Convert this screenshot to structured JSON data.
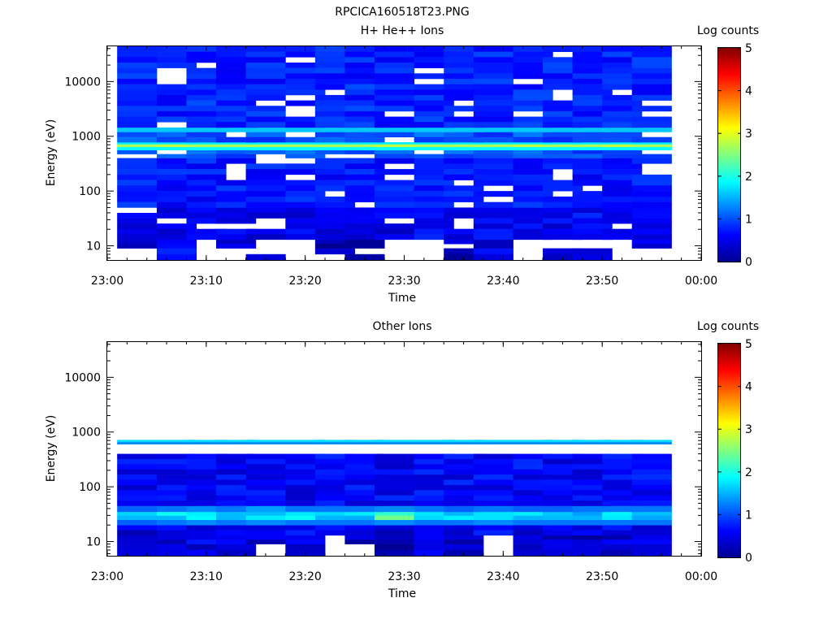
{
  "figure": {
    "title": "RPCICA160518T23.PNG"
  },
  "chart_data": [
    {
      "type": "heatmap",
      "title": "H+ He++ Ions",
      "xlabel": "Time",
      "ylabel": "Energy (eV)",
      "x_tick_labels": [
        "23:00",
        "23:10",
        "23:20",
        "23:30",
        "23:40",
        "23:50",
        "00:00"
      ],
      "x_range": [
        "23:00",
        "00:00"
      ],
      "y_scale": "log",
      "y_tick_labels": [
        "10",
        "100",
        "1000",
        "10000"
      ],
      "y_range": [
        5.5,
        44000
      ],
      "time_bins": [
        "23:01",
        "23:05",
        "23:08",
        "23:11",
        "23:14",
        "23:18",
        "23:21",
        "23:24",
        "23:27",
        "23:31",
        "23:34",
        "23:37",
        "23:41",
        "23:44",
        "23:47",
        "23:50",
        "23:53"
      ],
      "colorbar": {
        "label": "Log counts",
        "ticks": [
          "0",
          "1",
          "2",
          "3",
          "4",
          "5"
        ],
        "range": [
          0,
          5
        ]
      },
      "bands": [
        {
          "energy_min": 5.5,
          "energy_max": 9,
          "levels": [
            null,
            0.7,
            null,
            null,
            0.3,
            null,
            0.2,
            0.2,
            null,
            null,
            0.3,
            0.6,
            null,
            0.4,
            0.3,
            null,
            null
          ]
        },
        {
          "energy_min": 9,
          "energy_max": 13,
          "levels": [
            0.4,
            0.6,
            null,
            0.4,
            null,
            0.4,
            0.2,
            0.2,
            null,
            null,
            0.3,
            0.4,
            null,
            null,
            null,
            null,
            0.4
          ]
        },
        {
          "energy_min": 13,
          "energy_max": 50,
          "levels": [
            0.5,
            0.5,
            0.6,
            0.5,
            0.5,
            0.5,
            0.5,
            0.5,
            0.5,
            0.6,
            0.5,
            0.6,
            0.5,
            0.5,
            0.6,
            0.6,
            0.6
          ]
        },
        {
          "energy_min": 50,
          "energy_max": 400,
          "levels": [
            0.7,
            0.7,
            0.7,
            0.7,
            0.7,
            0.7,
            0.7,
            0.7,
            0.7,
            0.7,
            0.7,
            0.7,
            0.7,
            0.7,
            0.7,
            0.7,
            0.7
          ]
        },
        {
          "energy_min": 400,
          "energy_max": 560,
          "levels": [
            1.0,
            1.0,
            1.0,
            1.0,
            1.0,
            1.0,
            1.0,
            1.0,
            1.0,
            1.0,
            1.0,
            1.0,
            1.0,
            1.0,
            1.0,
            1.0,
            1.0
          ]
        },
        {
          "energy_min": 560,
          "energy_max": 640,
          "levels": [
            1.9,
            1.9,
            1.9,
            1.9,
            1.9,
            1.9,
            1.9,
            1.9,
            1.9,
            1.9,
            1.9,
            1.9,
            1.9,
            1.9,
            1.9,
            1.9,
            1.9
          ]
        },
        {
          "energy_min": 640,
          "energy_max": 720,
          "levels": [
            2.7,
            2.8,
            2.7,
            2.7,
            2.7,
            2.7,
            2.7,
            2.7,
            2.8,
            2.7,
            2.7,
            2.7,
            2.8,
            2.7,
            2.7,
            2.8,
            2.7
          ]
        },
        {
          "energy_min": 720,
          "energy_max": 780,
          "levels": [
            1.8,
            1.8,
            1.8,
            1.8,
            1.8,
            1.8,
            1.8,
            1.8,
            1.8,
            1.8,
            1.8,
            1.8,
            1.8,
            1.8,
            1.8,
            1.8,
            1.8
          ]
        },
        {
          "energy_min": 780,
          "energy_max": 1200,
          "levels": [
            1.0,
            1.0,
            1.0,
            1.0,
            1.0,
            1.0,
            1.0,
            1.0,
            1.0,
            1.0,
            1.0,
            1.0,
            1.0,
            1.0,
            1.0,
            1.0,
            1.0
          ]
        },
        {
          "energy_min": 1200,
          "energy_max": 1450,
          "levels": [
            1.6,
            1.6,
            1.6,
            1.6,
            1.6,
            1.6,
            1.6,
            1.6,
            1.6,
            1.6,
            1.6,
            1.6,
            1.6,
            1.6,
            1.6,
            1.6,
            1.6
          ]
        },
        {
          "energy_min": 1450,
          "energy_max": 44000,
          "levels": [
            0.75,
            0.75,
            0.75,
            0.75,
            0.75,
            0.75,
            0.75,
            0.75,
            0.75,
            0.75,
            0.75,
            0.75,
            0.75,
            0.75,
            0.75,
            0.75,
            0.75
          ]
        }
      ]
    },
    {
      "type": "heatmap",
      "title": "Other Ions",
      "xlabel": "Time",
      "ylabel": "Energy (eV)",
      "x_tick_labels": [
        "23:00",
        "23:10",
        "23:20",
        "23:30",
        "23:40",
        "23:50",
        "00:00"
      ],
      "x_range": [
        "23:00",
        "00:00"
      ],
      "y_scale": "log",
      "y_tick_labels": [
        "10",
        "100",
        "1000",
        "10000"
      ],
      "y_range": [
        5.5,
        44000
      ],
      "time_bins": [
        "23:01",
        "23:05",
        "23:08",
        "23:11",
        "23:14",
        "23:18",
        "23:21",
        "23:24",
        "23:27",
        "23:31",
        "23:34",
        "23:37",
        "23:41",
        "23:44",
        "23:47",
        "23:50",
        "23:53"
      ],
      "colorbar": {
        "label": "Log counts",
        "ticks": [
          "0",
          "1",
          "2",
          "3",
          "4",
          "5"
        ],
        "range": [
          0,
          5
        ]
      },
      "bands": [
        {
          "energy_min": 5.5,
          "energy_max": 9,
          "levels": [
            0.4,
            0.4,
            0.5,
            0.4,
            null,
            0.3,
            null,
            null,
            0.3,
            0.5,
            0.4,
            null,
            0.4,
            0.4,
            0.3,
            0.4,
            0.5
          ]
        },
        {
          "energy_min": 9,
          "energy_max": 13,
          "levels": [
            0.4,
            0.4,
            0.5,
            0.4,
            0.4,
            0.5,
            null,
            0.4,
            0.4,
            0.5,
            0.4,
            null,
            0.4,
            0.4,
            0.3,
            0.4,
            0.5
          ]
        },
        {
          "energy_min": 13,
          "energy_max": 20,
          "levels": [
            0.5,
            0.5,
            0.6,
            0.5,
            0.5,
            0.6,
            0.5,
            0.5,
            0.5,
            0.6,
            0.5,
            0.6,
            0.5,
            0.5,
            0.6,
            0.5,
            0.6
          ]
        },
        {
          "energy_min": 20,
          "energy_max": 25,
          "levels": [
            1.1,
            1.2,
            1.3,
            1.2,
            1.3,
            1.2,
            1.2,
            1.2,
            1.3,
            1.2,
            1.2,
            1.3,
            1.2,
            1.2,
            1.2,
            1.2,
            1.2
          ]
        },
        {
          "energy_min": 25,
          "energy_max": 35,
          "levels": [
            1.5,
            1.7,
            2.0,
            1.7,
            1.6,
            1.7,
            1.6,
            1.6,
            2.2,
            1.7,
            1.6,
            1.8,
            1.6,
            1.6,
            1.6,
            1.6,
            1.6
          ]
        },
        {
          "energy_min": 35,
          "energy_max": 45,
          "levels": [
            1.1,
            1.2,
            1.3,
            1.2,
            1.4,
            1.2,
            1.2,
            1.2,
            1.3,
            1.2,
            1.1,
            1.2,
            1.1,
            1.1,
            1.2,
            1.2,
            1.2
          ]
        },
        {
          "energy_min": 45,
          "energy_max": 400,
          "levels": [
            0.6,
            0.6,
            0.6,
            0.6,
            0.6,
            0.6,
            0.6,
            0.6,
            0.6,
            0.6,
            0.6,
            0.6,
            0.6,
            0.6,
            0.6,
            0.6,
            0.6
          ]
        },
        {
          "energy_min": 600,
          "energy_max": 660,
          "levels": [
            1.3,
            1.3,
            1.3,
            1.3,
            1.3,
            1.3,
            1.3,
            1.3,
            1.3,
            1.3,
            1.3,
            1.3,
            1.3,
            1.3,
            1.3,
            1.3,
            1.3
          ]
        },
        {
          "energy_min": 660,
          "energy_max": 720,
          "levels": [
            1.7,
            1.7,
            1.7,
            1.7,
            1.7,
            1.7,
            1.7,
            1.7,
            1.7,
            1.7,
            1.7,
            1.7,
            1.7,
            1.7,
            1.7,
            1.7,
            1.7
          ]
        }
      ]
    }
  ]
}
